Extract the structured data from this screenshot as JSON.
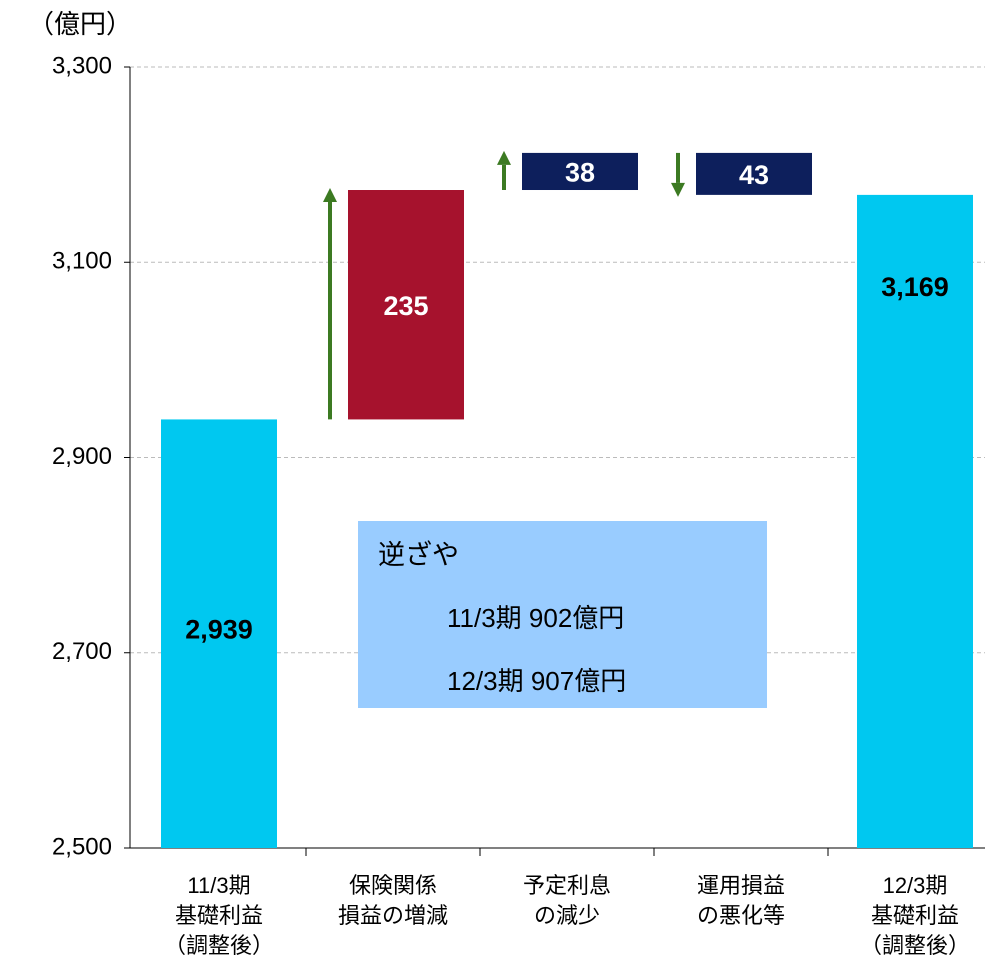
{
  "chart_data": {
    "type": "waterfall",
    "unit_label": "（億円）",
    "categories": [
      [
        "11/3期",
        "基礎利益",
        "（調整後）"
      ],
      [
        "保険関係",
        "損益の増減"
      ],
      [
        "予定利息",
        "の減少"
      ],
      [
        "運用損益",
        "の悪化等"
      ],
      [
        "12/3期",
        "基礎利益",
        "（調整後）"
      ]
    ],
    "values": [
      2939,
      235,
      38,
      -43,
      3169
    ],
    "value_labels": [
      "2,939",
      "235",
      "38",
      "43",
      "3,169"
    ],
    "totals": [
      true,
      false,
      false,
      false,
      true
    ],
    "colors": [
      "#00c8f0",
      "#a6122d",
      "#0d1f5c",
      "#0d1f5c",
      "#00c8f0"
    ],
    "arrow_color": "#3c7a22",
    "ylim": [
      2500,
      3300
    ],
    "yticks": [
      {
        "value": 2500,
        "label": "2,500"
      },
      {
        "value": 2700,
        "label": "2,700"
      },
      {
        "value": 2900,
        "label": "2,900"
      },
      {
        "value": 3100,
        "label": "3,100"
      },
      {
        "value": 3300,
        "label": "3,300"
      }
    ],
    "grid": true,
    "annotation": {
      "title": "逆ざや",
      "lines": [
        "11/3期 902億円",
        "12/3期 907億円"
      ],
      "color": "#99ccff"
    }
  }
}
